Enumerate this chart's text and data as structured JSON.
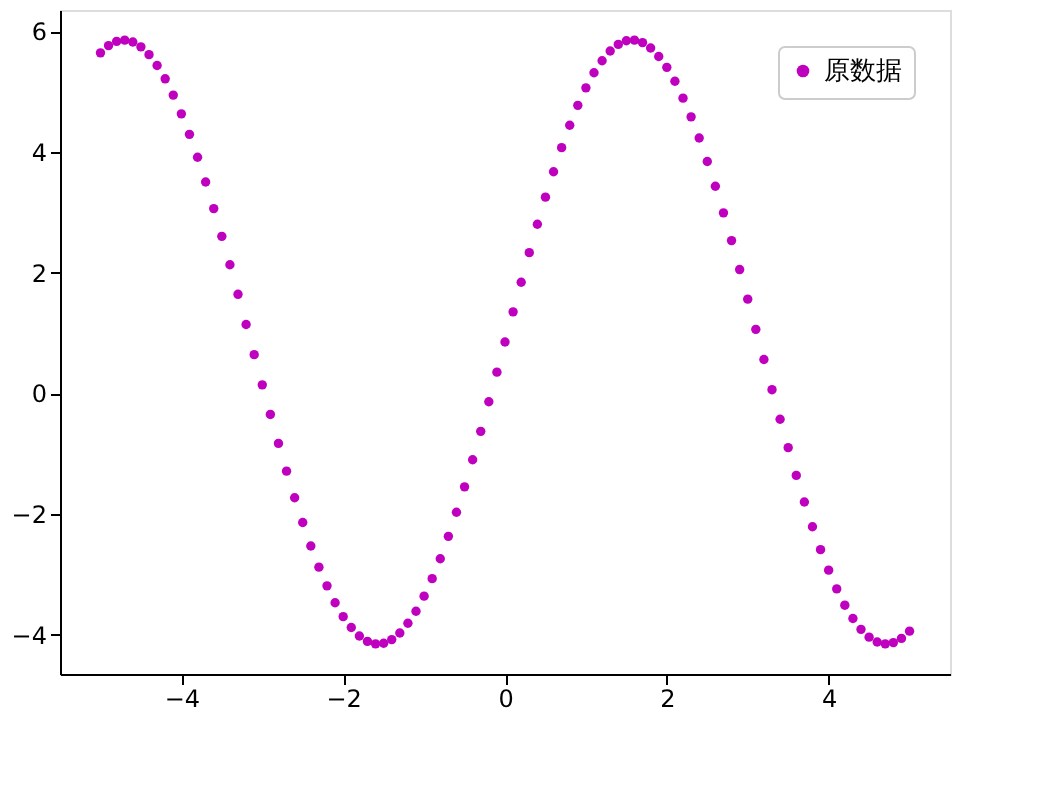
{
  "chart_data": {
    "type": "scatter",
    "marker": "circle",
    "legend": "top right",
    "grid": false,
    "xlim": [
      -5.5,
      5.5
    ],
    "xticks": [
      -4,
      -2,
      0,
      2,
      4
    ],
    "ylim": [
      -4.65,
      6.35
    ],
    "yticks": [
      -4,
      -2,
      0,
      2,
      4,
      6
    ],
    "x": [
      -5.0,
      -4.9,
      -4.8,
      -4.7,
      -4.6,
      -4.5,
      -4.4,
      -4.3,
      -4.2,
      -4.1,
      -4.0,
      -3.9,
      -3.8,
      -3.7,
      -3.6,
      -3.5,
      -3.4,
      -3.3,
      -3.2,
      -3.1,
      -3.0,
      -2.9,
      -2.8,
      -2.7,
      -2.6,
      -2.5,
      -2.4,
      -2.3,
      -2.2,
      -2.1,
      -2.0,
      -1.9,
      -1.8,
      -1.7,
      -1.6,
      -1.5,
      -1.4,
      -1.3,
      -1.2,
      -1.1,
      -1.0,
      -0.9,
      -0.8,
      -0.7,
      -0.6,
      -0.5,
      -0.4,
      -0.3,
      -0.2,
      -0.1,
      0.0,
      0.1,
      0.2,
      0.3,
      0.4,
      0.5,
      0.6,
      0.7,
      0.8,
      0.9,
      1.0,
      1.1,
      1.2,
      1.3,
      1.4,
      1.5,
      1.6,
      1.7,
      1.8,
      1.9,
      2.0,
      2.1,
      2.2,
      2.3,
      2.4,
      2.5,
      2.6,
      2.7,
      2.8,
      2.9,
      3.0,
      3.1,
      3.2,
      3.3,
      3.4,
      3.5,
      3.6,
      3.7,
      3.8,
      3.9,
      4.0,
      4.1,
      4.2,
      4.3,
      4.4,
      4.5,
      4.6,
      4.7,
      4.8,
      4.9,
      5.0
    ],
    "series": [
      {
        "name": "原数据",
        "color": "#bf00bf",
        "values": [
          5.64,
          5.76,
          5.83,
          5.85,
          5.82,
          5.74,
          5.61,
          5.43,
          5.21,
          4.94,
          4.63,
          4.29,
          3.91,
          3.5,
          3.06,
          2.6,
          2.13,
          1.64,
          1.14,
          0.64,
          0.14,
          -0.35,
          -0.83,
          -1.29,
          -1.73,
          -2.14,
          -2.53,
          -2.88,
          -3.19,
          -3.47,
          -3.7,
          -3.88,
          -4.02,
          -4.11,
          -4.15,
          -4.14,
          -4.08,
          -3.97,
          -3.81,
          -3.61,
          -3.36,
          -3.07,
          -2.74,
          -2.37,
          -1.97,
          -1.55,
          -1.1,
          -0.63,
          -0.14,
          0.35,
          0.85,
          1.35,
          1.84,
          2.33,
          2.8,
          3.25,
          3.67,
          4.07,
          4.44,
          4.77,
          5.06,
          5.31,
          5.51,
          5.67,
          5.78,
          5.84,
          5.85,
          5.81,
          5.72,
          5.58,
          5.4,
          5.17,
          4.89,
          4.58,
          4.23,
          3.84,
          3.43,
          2.99,
          2.53,
          2.05,
          1.56,
          1.06,
          0.56,
          0.06,
          -0.43,
          -0.9,
          -1.36,
          -1.8,
          -2.21,
          -2.59,
          -2.93,
          -3.24,
          -3.51,
          -3.73,
          -3.91,
          -4.04,
          -4.12,
          -4.15,
          -4.13,
          -4.06,
          -3.94
        ]
      }
    ]
  }
}
